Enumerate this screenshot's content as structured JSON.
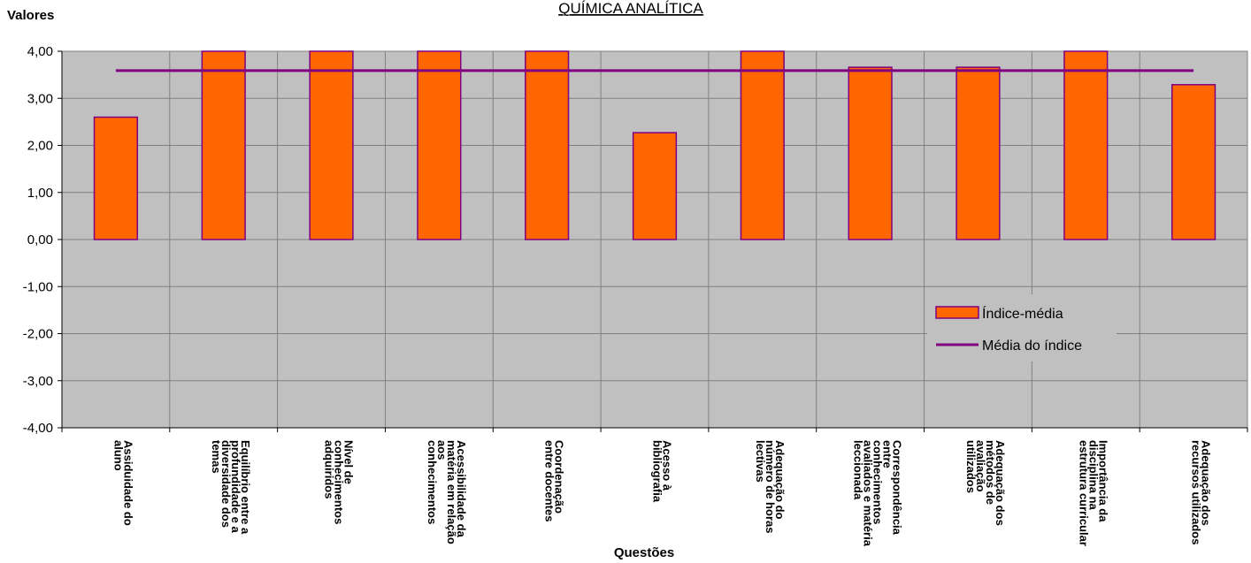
{
  "chart_data": {
    "type": "bar",
    "title": "QUÍMICA ANALÍTICA",
    "ylabel": "Valores",
    "xlabel": "Questões",
    "ylim": [
      -4,
      4
    ],
    "ytick_step": 1,
    "ytick_labels": [
      "4,00",
      "3,00",
      "2,00",
      "1,00",
      "0,00",
      "-1,00",
      "-2,00",
      "-3,00",
      "-4,00"
    ],
    "categories": [
      [
        "Assiduidade do",
        "aluno"
      ],
      [
        "Equilíbrio entre a",
        "profundidade e a",
        "diversidade dos",
        "temas"
      ],
      [
        "Nível de",
        "conhecimentos",
        "adquiridos"
      ],
      [
        "Acessibilidade da",
        "matéria em relação",
        "aos",
        "conhecimentos"
      ],
      [
        "Coordenação",
        "entre docentes"
      ],
      [
        "Acesso à",
        "bibliografia"
      ],
      [
        "Adequação do",
        "número de horas",
        "lectivas"
      ],
      [
        "Correspondência",
        "entre",
        "conhecimentos",
        "avaliados e matéria",
        "leccionada"
      ],
      [
        "Adequação dos",
        "métodos de",
        "avaliação",
        "utilizados"
      ],
      [
        "Importância da",
        "disciplina na",
        "estrutura curricular"
      ],
      [
        "Adequação dos",
        "recursos utilizados"
      ]
    ],
    "series": [
      {
        "name": "Índice-média",
        "type": "bar",
        "color": "#ff6600",
        "edge_color": "#800080",
        "values": [
          2.6,
          4.0,
          4.0,
          4.0,
          4.0,
          2.27,
          4.0,
          3.66,
          3.66,
          4.0,
          3.29
        ]
      },
      {
        "name": "Média do índice",
        "type": "line",
        "color": "#800080",
        "value": 3.59
      }
    ],
    "plot_background": "#c0c0c0",
    "grid": true,
    "legend_position": "right"
  }
}
